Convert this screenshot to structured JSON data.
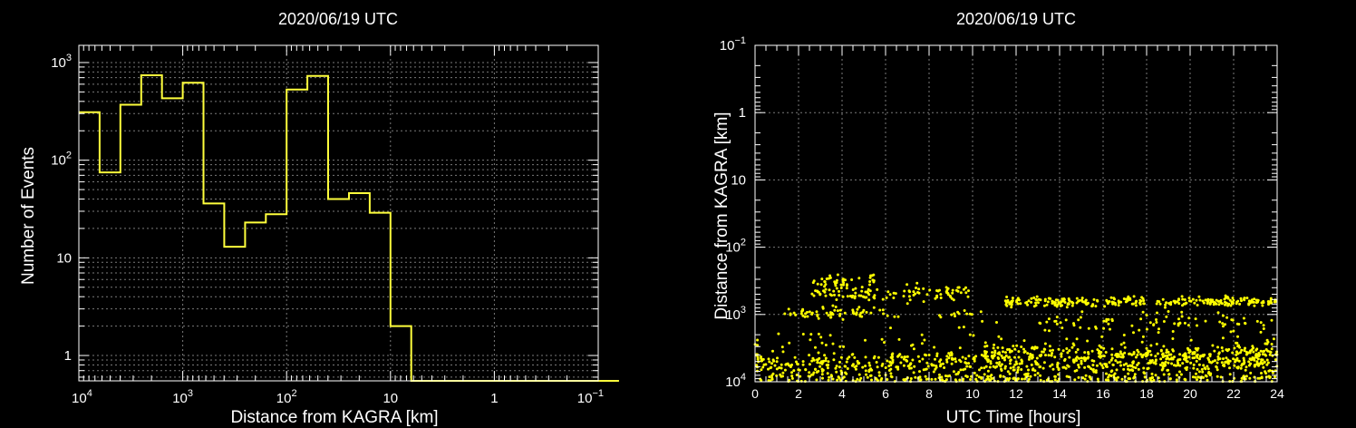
{
  "chart_data": [
    {
      "type": "histogram",
      "title": "2020/06/19 UTC",
      "xlabel": "Distance from KAGRA [km]",
      "ylabel": "Number of Events",
      "x_scale": "log",
      "x_reversed": true,
      "y_scale": "log",
      "xlim": [
        10000,
        0.1
      ],
      "ylim": [
        0.55,
        1500
      ],
      "grid": true,
      "x_ticks": [
        {
          "value": 10000,
          "base": "10",
          "exp": "4"
        },
        {
          "value": 1000,
          "base": "10",
          "exp": "3"
        },
        {
          "value": 100,
          "base": "10",
          "exp": "2"
        },
        {
          "value": 10,
          "base": "10",
          "exp": ""
        },
        {
          "value": 1,
          "base": "1",
          "exp": ""
        },
        {
          "value": 0.1,
          "base": "10",
          "exp": "−1"
        }
      ],
      "y_ticks": [
        {
          "value": 1,
          "base": "1",
          "exp": ""
        },
        {
          "value": 10,
          "base": "10",
          "exp": ""
        },
        {
          "value": 100,
          "base": "10",
          "exp": "2"
        },
        {
          "value": 1000,
          "base": "10",
          "exp": "3"
        }
      ],
      "color": "#ffff3c",
      "bins_per_decade": 5,
      "bin_counts": [
        310,
        75,
        370,
        740,
        430,
        620,
        36,
        13,
        23,
        28,
        530,
        730,
        40,
        46,
        29,
        2,
        0,
        0,
        0,
        0,
        0,
        0,
        0,
        0,
        0,
        0
      ]
    },
    {
      "type": "scatter",
      "title": "2020/06/19 UTC",
      "xlabel": "UTC Time [hours]",
      "ylabel": "Distance from KAGRA [km]",
      "y_scale": "log",
      "y_reversed": true,
      "xlim": [
        0,
        24
      ],
      "ylim": [
        0.1,
        10000
      ],
      "grid": true,
      "x_ticks": [
        "0",
        "2",
        "4",
        "6",
        "8",
        "10",
        "12",
        "14",
        "16",
        "18",
        "20",
        "22",
        "24"
      ],
      "y_ticks": [
        {
          "value": 0.1,
          "base": "10",
          "exp": "−1"
        },
        {
          "value": 1,
          "base": "1",
          "exp": ""
        },
        {
          "value": 10,
          "base": "10",
          "exp": ""
        },
        {
          "value": 100,
          "base": "10",
          "exp": "2"
        },
        {
          "value": 1000,
          "base": "10",
          "exp": "3"
        },
        {
          "value": 10000,
          "base": "10",
          "exp": "4"
        }
      ],
      "color": "#ffff00",
      "clusters": [
        {
          "t_start": 0,
          "t_end": 24,
          "distance_km": 5200,
          "spread": 0.1,
          "count": 360
        },
        {
          "t_start": 0,
          "t_end": 24,
          "distance_km": 6600,
          "spread": 0.14,
          "count": 260
        },
        {
          "t_start": 10.5,
          "t_end": 24,
          "distance_km": 3800,
          "spread": 0.08,
          "count": 240
        },
        {
          "t_start": 0,
          "t_end": 24,
          "distance_km": 9000,
          "spread": 0.05,
          "count": 220
        },
        {
          "t_start": 0,
          "t_end": 24,
          "distance_km": 2800,
          "spread": 0.18,
          "count": 120
        },
        {
          "t_start": 11.5,
          "t_end": 24,
          "distance_km": 650,
          "spread": 0.05,
          "count": 280
        },
        {
          "t_start": 13,
          "t_end": 24,
          "distance_km": 1300,
          "spread": 0.1,
          "count": 80
        },
        {
          "t_start": 2.6,
          "t_end": 10,
          "distance_km": 490,
          "spread": 0.09,
          "count": 110
        },
        {
          "t_start": 1.2,
          "t_end": 5,
          "distance_km": 950,
          "spread": 0.06,
          "count": 55
        },
        {
          "t_start": 2.6,
          "t_end": 5.5,
          "distance_km": 330,
          "spread": 0.07,
          "count": 40
        },
        {
          "t_start": 4,
          "t_end": 10.5,
          "distance_km": 1000,
          "spread": 0.06,
          "count": 25
        }
      ]
    }
  ]
}
